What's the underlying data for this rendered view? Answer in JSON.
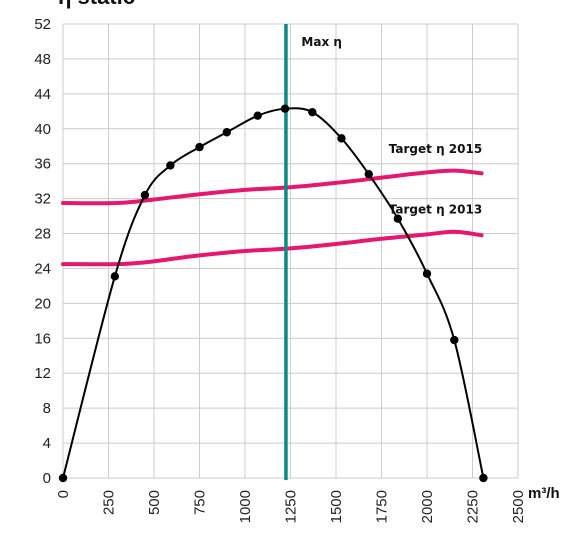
{
  "chart_data": {
    "type": "line",
    "title": "η static",
    "xunit": "m³/h",
    "xlim": [
      0,
      2500
    ],
    "ylim": [
      0,
      52
    ],
    "x_ticks": [
      0,
      250,
      500,
      750,
      1000,
      1250,
      1500,
      1750,
      2000,
      2250,
      2500
    ],
    "y_ticks": [
      0,
      4,
      8,
      12,
      16,
      20,
      24,
      28,
      32,
      36,
      40,
      44,
      48,
      52
    ],
    "grid": true,
    "series": [
      {
        "name": "",
        "color": "#000000",
        "markers": true,
        "points": [
          [
            0,
            0
          ],
          [
            285,
            23.1
          ],
          [
            450,
            32.4
          ],
          [
            590,
            35.8
          ],
          [
            750,
            37.9
          ],
          [
            900,
            39.6
          ],
          [
            1070,
            41.5
          ],
          [
            1220,
            42.3
          ],
          [
            1370,
            41.9
          ],
          [
            1530,
            38.9
          ],
          [
            1680,
            34.8
          ],
          [
            1840,
            29.7
          ],
          [
            2000,
            23.4
          ],
          [
            2150,
            15.8
          ],
          [
            2310,
            0
          ]
        ]
      },
      {
        "name": "Target η 2015",
        "color": "#e6176f",
        "markers": false,
        "points": [
          [
            0,
            31.5
          ],
          [
            300,
            31.5
          ],
          [
            500,
            31.9
          ],
          [
            750,
            32.5
          ],
          [
            1000,
            33.0
          ],
          [
            1250,
            33.3
          ],
          [
            1500,
            33.8
          ],
          [
            1750,
            34.4
          ],
          [
            2000,
            35.0
          ],
          [
            2150,
            35.2
          ],
          [
            2300,
            34.9
          ]
        ]
      },
      {
        "name": "Target η 2013",
        "color": "#e6176f",
        "markers": false,
        "points": [
          [
            0,
            24.5
          ],
          [
            300,
            24.5
          ],
          [
            450,
            24.7
          ],
          [
            600,
            25.1
          ],
          [
            750,
            25.5
          ],
          [
            1000,
            26.0
          ],
          [
            1250,
            26.3
          ],
          [
            1500,
            26.8
          ],
          [
            1750,
            27.4
          ],
          [
            2000,
            27.9
          ],
          [
            2150,
            28.2
          ],
          [
            2300,
            27.8
          ]
        ]
      }
    ],
    "vline": {
      "x": 1225,
      "label": "Max η",
      "color": "#0a8a83"
    },
    "annotations": [
      {
        "text": "Target η 2015",
        "x": 1790,
        "y": 37.2
      },
      {
        "text": "Target η 2013",
        "x": 1790,
        "y": 30.3
      },
      {
        "text": "Max η",
        "x": 1310,
        "y": 49.5
      }
    ]
  }
}
